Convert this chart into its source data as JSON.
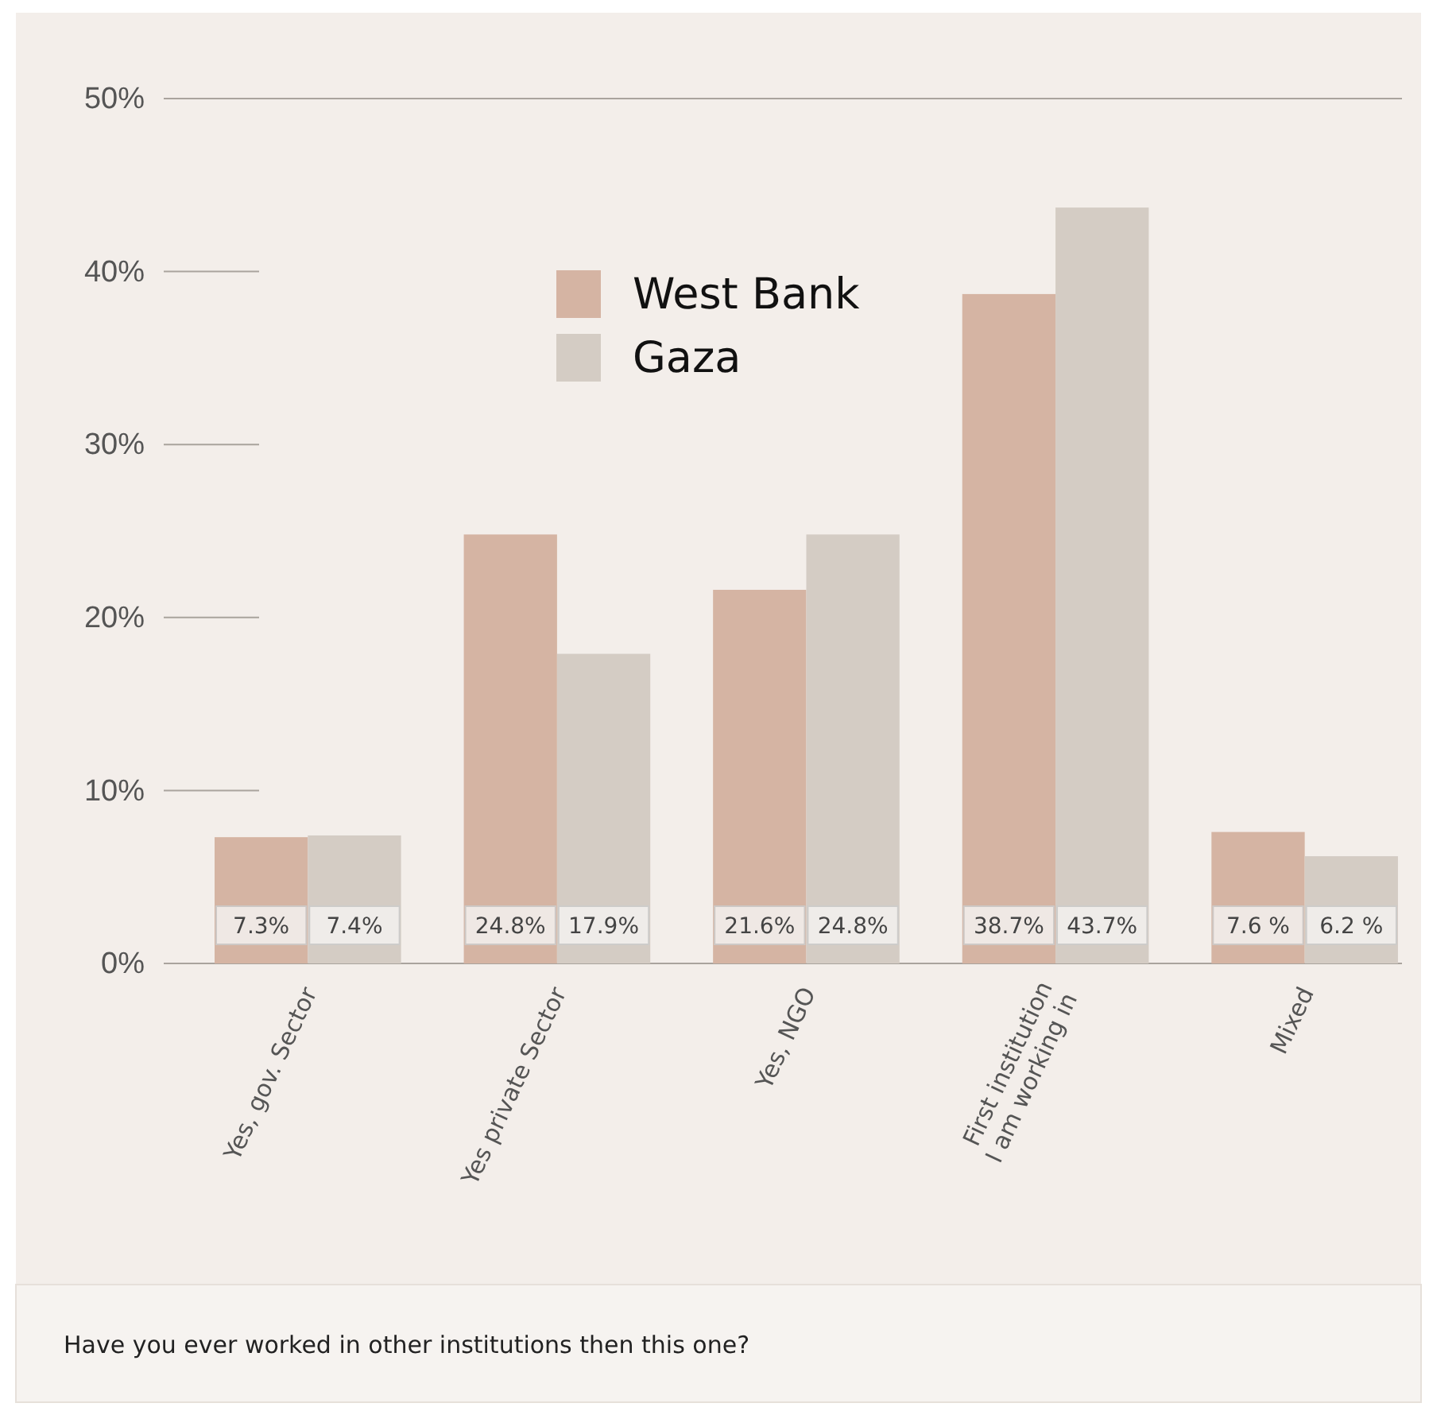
{
  "chart_data": {
    "type": "bar",
    "categories": [
      "Yes, gov. Sector",
      "Yes private Sector",
      "Yes, NGO",
      "First institution I am working in",
      "Mixed"
    ],
    "series": [
      {
        "name": "West Bank",
        "color": "#d5b4a3",
        "values": [
          7.3,
          24.8,
          21.6,
          38.7,
          7.6
        ],
        "value_labels": [
          "7.3%",
          "24.8%",
          "21.6%",
          "38.7%",
          "7.6 %"
        ]
      },
      {
        "name": "Gaza",
        "color": "#d4ccc4",
        "values": [
          7.4,
          17.9,
          24.8,
          43.7,
          6.2
        ],
        "value_labels": [
          "7.4%",
          "17.9%",
          "24.8%",
          "43.7%",
          "6.2 %"
        ]
      }
    ],
    "ylim": [
      0,
      50
    ],
    "yticks": [
      {
        "value": 0,
        "label": "0%"
      },
      {
        "value": 10,
        "label": "10%"
      },
      {
        "value": 20,
        "label": "20%"
      },
      {
        "value": 30,
        "label": "30%"
      },
      {
        "value": 40,
        "label": "40%"
      },
      {
        "value": 50,
        "label": "50%"
      }
    ],
    "grid": false,
    "legend": "top",
    "annotations": [
      "Have you ever worked in other institutions then this one?"
    ]
  }
}
